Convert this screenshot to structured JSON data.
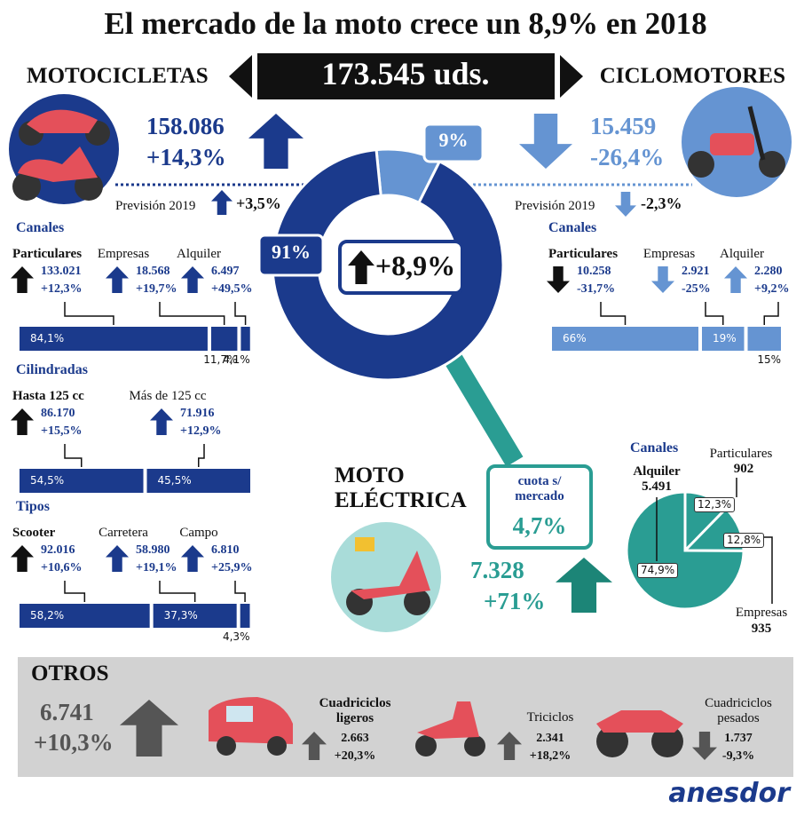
{
  "title": "El mercado de la moto crece un 8,9% en 2018",
  "total": {
    "left_label": "MOTOCICLETAS",
    "value": "173.545 uds.",
    "right_label": "CICLOMOTORES"
  },
  "donut": {
    "center": "+8,9%",
    "segments": [
      {
        "value": 9,
        "label": "9%"
      },
      {
        "value": 91,
        "label": "91%"
      }
    ]
  },
  "motocicletas": {
    "units": "158.086",
    "change": "+14,3%",
    "forecast_label": "Previsión 2019",
    "forecast": "+3,5%",
    "groups": [
      {
        "title": "Canales",
        "items": [
          {
            "name": "Particulares",
            "units": "133.021",
            "change": "+12,3%",
            "share": {
              "value": 84.1,
              "label": "84,1%"
            }
          },
          {
            "name": "Empresas",
            "units": "18.568",
            "change": "+19,7%",
            "share": {
              "value": 11.7,
              "label": "11,7%"
            }
          },
          {
            "name": "Alquiler",
            "units": "6.497",
            "change": "+49,5%",
            "share": {
              "value": 4.1,
              "label": "4,1%"
            }
          }
        ]
      },
      {
        "title": "Cilindradas",
        "items": [
          {
            "name": "Hasta 125 cc",
            "units": "86.170",
            "change": "+15,5%",
            "share": {
              "value": 54.5,
              "label": "54,5%"
            }
          },
          {
            "name": "Más de 125 cc",
            "units": "71.916",
            "change": "+12,9%",
            "share": {
              "value": 45.5,
              "label": "45,5%"
            }
          }
        ]
      },
      {
        "title": "Tipos",
        "items": [
          {
            "name": "Scooter",
            "units": "92.016",
            "change": "+10,6%",
            "share": {
              "value": 58.2,
              "label": "58,2%"
            }
          },
          {
            "name": "Carretera",
            "units": "58.980",
            "change": "+19,1%",
            "share": {
              "value": 37.3,
              "label": "37,3%"
            }
          },
          {
            "name": "Campo",
            "units": "6.810",
            "change": "+25,9%",
            "share": {
              "value": 4.3,
              "label": "4,3%"
            }
          }
        ]
      }
    ]
  },
  "ciclomotores": {
    "units": "15.459",
    "change": "-26,4%",
    "forecast_label": "Previsión 2019",
    "forecast": "-2,3%",
    "groups": [
      {
        "title": "Canales",
        "items": [
          {
            "name": "Particulares",
            "units": "10.258",
            "change": "-31,7%",
            "share": {
              "value": 66,
              "label": "66%"
            }
          },
          {
            "name": "Empresas",
            "units": "2.921",
            "change": "-25%",
            "share": {
              "value": 19,
              "label": "19%"
            }
          },
          {
            "name": "Alquiler",
            "units": "2.280",
            "change": "+9,2%",
            "share": {
              "value": 15,
              "label": "15%"
            }
          }
        ]
      }
    ]
  },
  "electrica": {
    "title": "MOTO ELÉCTRICA",
    "share_label": "cuota s/ mercado",
    "share": "4,7%",
    "units": "7.328",
    "change": "+71%",
    "channels_title": "Canales",
    "channels": [
      {
        "name": "Particulares",
        "units": "902",
        "share": {
          "value": 12.3,
          "label": "12,3%"
        }
      },
      {
        "name": "Empresas",
        "units": "935",
        "share": {
          "value": 12.8,
          "label": "12,8%"
        }
      },
      {
        "name": "Alquiler",
        "units": "5.491",
        "share": {
          "value": 74.9,
          "label": "74,9%"
        }
      }
    ]
  },
  "otros": {
    "title": "OTROS",
    "units": "6.741",
    "change": "+10,3%",
    "items": [
      {
        "name": "Cuadriciclos ligeros",
        "units": "2.663",
        "change": "+20,3%"
      },
      {
        "name": "Triciclos",
        "units": "2.341",
        "change": "+18,2%"
      },
      {
        "name": "Cuadriciclos pesados",
        "units": "1.737",
        "change": "-9,3%"
      }
    ]
  },
  "logo": "anesdor"
}
